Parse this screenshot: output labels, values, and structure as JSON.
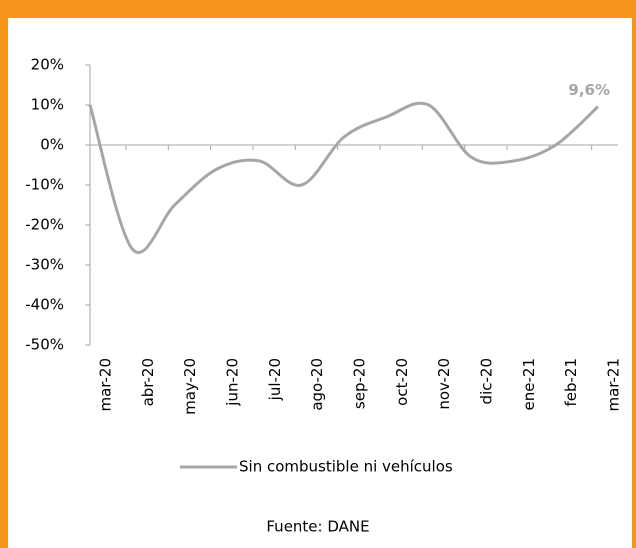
{
  "chart_data": {
    "type": "line",
    "categories": [
      "mar-20",
      "abr-20",
      "may-20",
      "jun-20",
      "jul-20",
      "ago-20",
      "sep-20",
      "oct-20",
      "nov-20",
      "dic-20",
      "ene-21",
      "feb-21",
      "mar-21"
    ],
    "series": [
      {
        "name": "Sin combustible ni vehículos",
        "color": "#a6a6a6",
        "values": [
          10,
          -26,
          -15,
          -6,
          -4,
          -10,
          2,
          7,
          10,
          -3,
          -4,
          0,
          9.6
        ],
        "value_labels": [
          null,
          null,
          null,
          null,
          null,
          null,
          null,
          null,
          null,
          null,
          null,
          null,
          "9,6%"
        ]
      }
    ],
    "ylim": [
      -50,
      20
    ],
    "yticks": [
      {
        "value": 20,
        "label": "20%"
      },
      {
        "value": 10,
        "label": "10%"
      },
      {
        "value": 0,
        "label": "0%"
      },
      {
        "value": -10,
        "label": "-10%"
      },
      {
        "value": -20,
        "label": "-20%"
      },
      {
        "value": -30,
        "label": "-30%"
      },
      {
        "value": -40,
        "label": "-40%"
      },
      {
        "value": -50,
        "label": "-50%"
      }
    ],
    "smooth": true,
    "legend": "bottom",
    "source": "Fuente: DANE"
  }
}
